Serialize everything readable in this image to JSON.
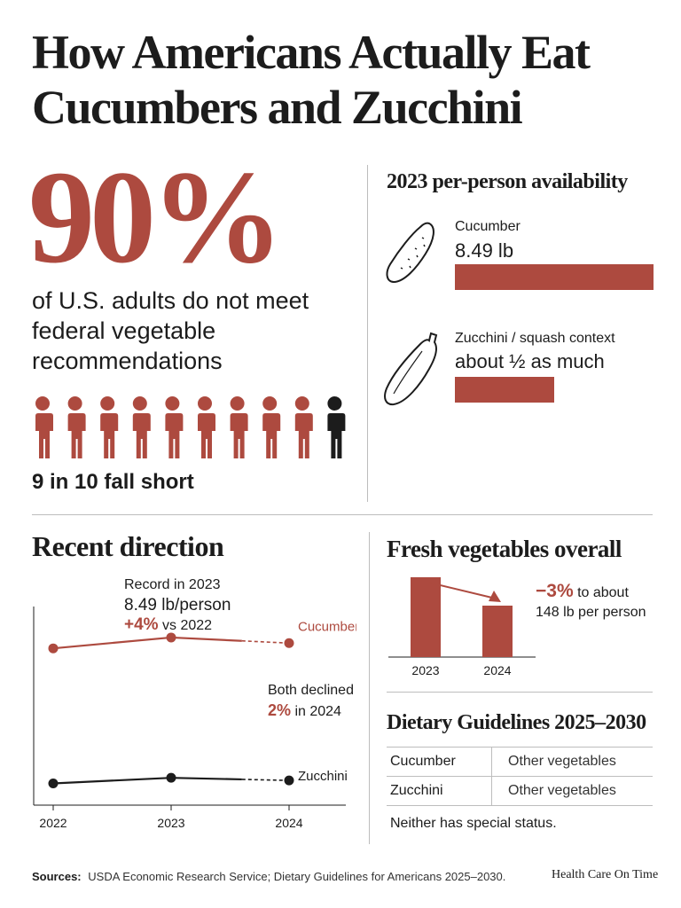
{
  "title": "How Americans Actually Eat Cucumbers and Zucchini",
  "hero": {
    "percent": "90%",
    "statement": "of U.S. adults do not meet federal vegetable recommendations",
    "people_total": 10,
    "people_short": 9,
    "caption": "9 in 10 fall short"
  },
  "availability": {
    "heading": "2023 per-person availability",
    "items": [
      {
        "label": "Cucumber",
        "value": "8.49 lb",
        "icon": "cucumber-icon",
        "bar_fraction": 1.0
      },
      {
        "label": "Zucchini / squash context",
        "value": "about ½ as much",
        "icon": "zucchini-icon",
        "bar_fraction": 0.5
      }
    ]
  },
  "direction": {
    "heading": "Recent direction",
    "record_line1": "Record in 2023",
    "record_line2": "8.49 lb/person",
    "record_change": "+4%",
    "record_change_suffix": " vs 2022",
    "both_line": "Both declined",
    "both_pct": "2%",
    "both_suffix": " in 2024"
  },
  "chart_data": {
    "type": "line",
    "x": [
      "2022",
      "2023",
      "2024"
    ],
    "series": [
      {
        "name": "Cucumber",
        "values": [
          8.16,
          8.49,
          8.32
        ]
      },
      {
        "name": "Zucchini",
        "values": [
          4.06,
          4.23,
          4.15
        ]
      }
    ],
    "last_segment_dashed": true,
    "ylim": [
      3.4,
      9.0
    ],
    "grid": false,
    "colors": {
      "Cucumber": "#ad4a3f",
      "Zucchini": "#1c1c1c"
    }
  },
  "fresh": {
    "heading": "Fresh vegetables overall",
    "change": "−3%",
    "change_suffix": " to about",
    "amount_line": "148 lb per person",
    "chart": {
      "type": "bar",
      "categories": [
        "2023",
        "2024"
      ],
      "values": [
        153,
        148
      ],
      "direction": "down"
    }
  },
  "guidelines": {
    "heading": "Dietary Guidelines 2025–2030",
    "rows": [
      {
        "name": "Cucumber",
        "group": "Other vegetables"
      },
      {
        "name": "Zucchini",
        "group": "Other vegetables"
      }
    ],
    "note": "Neither has special status."
  },
  "footer": {
    "sources_label": "Sources:",
    "sources_text": "USDA Economic Research Service; Dietary Guidelines for Americans 2025–2030.",
    "brand": "Health Care On Time"
  },
  "colors": {
    "accent": "#ad4a3f",
    "ink": "#1c1c1c",
    "rule": "#bdbdbd"
  }
}
